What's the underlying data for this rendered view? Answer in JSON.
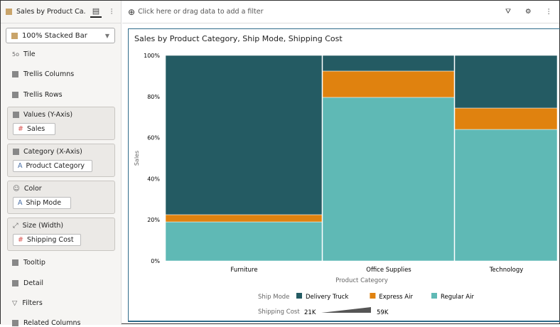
{
  "tab": {
    "title": "Sales by Product Ca...",
    "icon": "bar-chart-icon"
  },
  "chart_type_select": {
    "value": "100% Stacked Bar"
  },
  "left_items": {
    "tile": "Tile",
    "trellis_columns": "Trellis Columns",
    "trellis_rows": "Trellis Rows",
    "tooltip": "Tooltip",
    "detail": "Detail",
    "filters": "Filters",
    "related": "Related Columns"
  },
  "drop_zones": [
    {
      "label": "Values (Y-Axis)",
      "pill": "Sales",
      "pill_type": "measure"
    },
    {
      "label": "Category (X-Axis)",
      "pill": "Product Category",
      "pill_type": "attribute"
    },
    {
      "label": "Color",
      "pill": "Ship Mode",
      "pill_type": "attribute"
    },
    {
      "label": "Size (Width)",
      "pill": "Shipping Cost",
      "pill_type": "measure"
    }
  ],
  "filter_bar": {
    "placeholder": "Click here or drag data to add a filter"
  },
  "chart_data": {
    "type": "bar",
    "stacking": "100%",
    "title": "Sales by Product Category, Ship Mode, Shipping Cost",
    "xlabel": "Product Category",
    "ylabel": "Sales",
    "categories": [
      "Furniture",
      "Office Supplies",
      "Technology"
    ],
    "yticks": [
      "0%",
      "20%",
      "40%",
      "60%",
      "80%",
      "100%"
    ],
    "ylim": [
      0,
      100
    ],
    "width_relative": [
      221,
      186,
      145
    ],
    "series": [
      {
        "name": "Regular Air",
        "color": "#5fb9b5",
        "values": [
          19,
          79.6,
          64
        ]
      },
      {
        "name": "Express Air",
        "color": "#e0820f",
        "values": [
          3.5,
          12.8,
          10.4
        ]
      },
      {
        "name": "Delivery Truck",
        "color": "#245b63",
        "values": [
          77.5,
          7.6,
          25.6
        ]
      }
    ],
    "legend": {
      "color_title": "Ship Mode",
      "size_title": "Shipping Cost",
      "size_min": "21K",
      "size_max": "59K",
      "placement": "bottom"
    }
  }
}
